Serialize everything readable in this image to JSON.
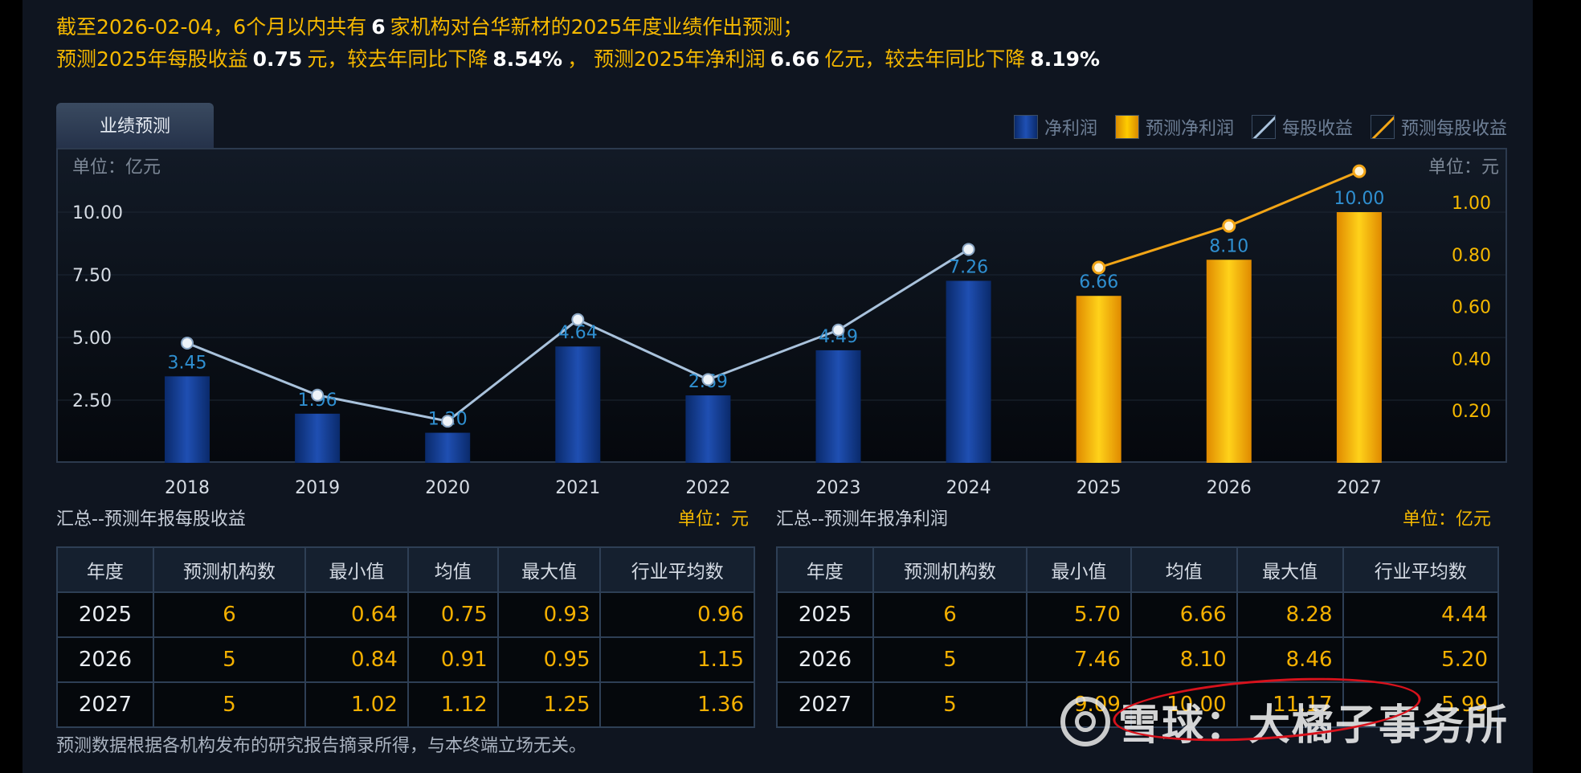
{
  "summary": {
    "line1_prefix": "截至2026-02-04，6个月以内共有",
    "line1_count": "6",
    "line1_suffix": "家机构对台华新材的2025年度业绩作出预测；",
    "line2_a": "预测2025年每股收益",
    "line2_eps": "0.75",
    "line2_b": "元，较去年同比下降",
    "line2_eps_change": "8.54%",
    "line2_c": "，  预测2025年净利润",
    "line2_np": "6.66",
    "line2_d": "亿元，较去年同比下降",
    "line2_np_change": "8.19%"
  },
  "tab_label": "业绩预测",
  "legend": [
    "净利润",
    "预测净利润",
    "每股收益",
    "预测每股收益"
  ],
  "colors": {
    "accent": "#f5b800",
    "bar_actual": "#1a45a0",
    "bar_forecast": "#f5b000",
    "eps_line": "#a9c2dc",
    "eps_forecast_line": "#f2a516",
    "value_label": "#2f8fd0"
  },
  "chart_data": {
    "type": "bar",
    "categories": [
      "2018",
      "2019",
      "2020",
      "2021",
      "2022",
      "2023",
      "2024",
      "2025",
      "2026",
      "2027"
    ],
    "series": [
      {
        "name": "净利润",
        "values": [
          3.45,
          1.96,
          1.2,
          4.64,
          2.69,
          4.49,
          7.26,
          null,
          null,
          null
        ]
      },
      {
        "name": "预测净利润",
        "values": [
          null,
          null,
          null,
          null,
          null,
          null,
          null,
          6.66,
          8.1,
          10.0
        ]
      },
      {
        "name": "每股收益",
        "values": [
          0.46,
          0.26,
          0.16,
          0.55,
          0.32,
          0.51,
          0.82,
          null,
          null,
          null
        ]
      },
      {
        "name": "预测每股收益",
        "values": [
          null,
          null,
          null,
          null,
          null,
          null,
          null,
          0.75,
          0.91,
          1.12
        ]
      }
    ],
    "data_labels": [
      "3.45",
      "1.96",
      "1.20",
      "4.64",
      "2.69",
      "4.49",
      "7.26",
      "6.66",
      "8.10",
      "10.00"
    ],
    "left_unit": "单位：亿元",
    "right_unit": "单位：元",
    "y_ticks": [
      "10.00",
      "7.50",
      "5.00",
      "2.50"
    ],
    "y2_ticks": [
      "1.00",
      "0.80",
      "0.60",
      "0.40",
      "0.20"
    ],
    "ylim": [
      0,
      10.0
    ],
    "y2lim": [
      0,
      1.2
    ],
    "grid": true,
    "legend_position": "top-right"
  },
  "tables": {
    "eps": {
      "title": "汇总--预测年报每股收益",
      "unit": "单位：元",
      "headers": [
        "年度",
        "预测机构数",
        "最小值",
        "均值",
        "最大值",
        "行业平均数"
      ],
      "rows": [
        [
          "2025",
          "6",
          "0.64",
          "0.75",
          "0.93",
          "0.96"
        ],
        [
          "2026",
          "5",
          "0.84",
          "0.91",
          "0.95",
          "1.15"
        ],
        [
          "2027",
          "5",
          "1.02",
          "1.12",
          "1.25",
          "1.36"
        ]
      ]
    },
    "np": {
      "title": "汇总--预测年报净利润",
      "unit": "单位：亿元",
      "headers": [
        "年度",
        "预测机构数",
        "最小值",
        "均值",
        "最大值",
        "行业平均数"
      ],
      "rows": [
        [
          "2025",
          "6",
          "5.70",
          "6.66",
          "8.28",
          "4.44"
        ],
        [
          "2026",
          "5",
          "7.46",
          "8.10",
          "8.46",
          "5.20"
        ],
        [
          "2027",
          "5",
          "9.09",
          "10.00",
          "11.17",
          "5.99"
        ]
      ]
    }
  },
  "footnote": "预测数据根据各机构发布的研究报告摘录所得，与本终端立场无关。",
  "watermark": "雪球：大橘子事务所"
}
